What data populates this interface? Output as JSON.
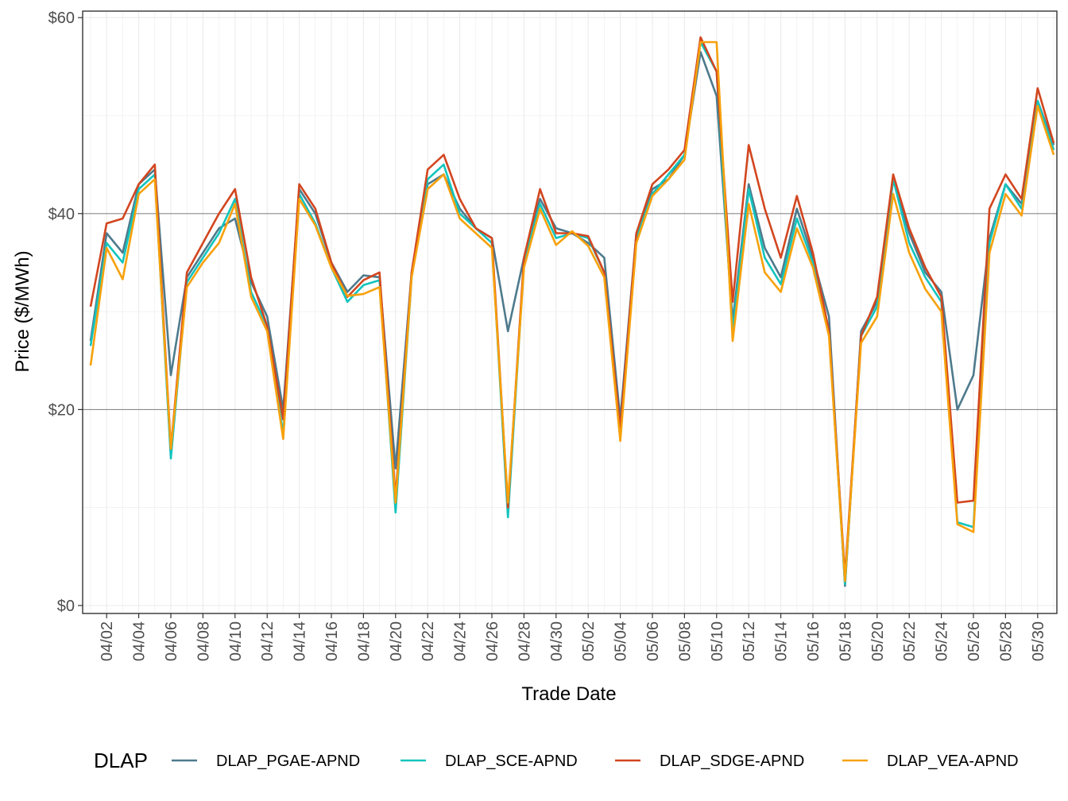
{
  "chart_data": {
    "type": "line",
    "xlabel": "Trade Date",
    "ylabel": "Price ($/MWh)",
    "ylim": [
      0,
      60
    ],
    "y_ticks": [
      "$0",
      "$20",
      "$40",
      "$60"
    ],
    "grid": true,
    "legend_position": "bottom",
    "legend_title": "DLAP",
    "x_tick_labels": [
      "04/02",
      "04/04",
      "04/06",
      "04/08",
      "04/10",
      "04/12",
      "04/14",
      "04/16",
      "04/18",
      "04/20",
      "04/22",
      "04/24",
      "04/26",
      "04/28",
      "04/30",
      "05/02",
      "05/04",
      "05/06",
      "05/08",
      "05/10",
      "05/12",
      "05/14",
      "05/16",
      "05/18",
      "05/20",
      "05/22",
      "05/24",
      "05/26",
      "05/28",
      "05/30"
    ],
    "x": [
      "04/01",
      "04/02",
      "04/03",
      "04/04",
      "04/05",
      "04/06",
      "04/07",
      "04/08",
      "04/09",
      "04/10",
      "04/11",
      "04/12",
      "04/13",
      "04/14",
      "04/15",
      "04/16",
      "04/17",
      "04/18",
      "04/19",
      "04/20",
      "04/21",
      "04/22",
      "04/23",
      "04/24",
      "04/25",
      "04/26",
      "04/27",
      "04/28",
      "04/29",
      "04/30",
      "05/01",
      "05/02",
      "05/03",
      "05/04",
      "05/05",
      "05/06",
      "05/07",
      "05/08",
      "05/09",
      "05/10",
      "05/11",
      "05/12",
      "05/13",
      "05/14",
      "05/15",
      "05/16",
      "05/17",
      "05/18",
      "05/19",
      "05/20",
      "05/21",
      "05/22",
      "05/23",
      "05/24",
      "05/25",
      "05/26",
      "05/27",
      "05/28",
      "05/29",
      "05/30",
      "05/31"
    ],
    "series": [
      {
        "name": "DLAP_PGAE-APND",
        "color": "#4e7a8c",
        "values": [
          27,
          38,
          36,
          43,
          44.5,
          23.5,
          33.5,
          36,
          38.5,
          39.5,
          33,
          29.5,
          20,
          42.5,
          40,
          35,
          32,
          33.7,
          33.5,
          14,
          34,
          43,
          44,
          40.5,
          38.5,
          37.5,
          28,
          35.5,
          41.5,
          38.5,
          38,
          37,
          35.5,
          19,
          38,
          42.5,
          43.5,
          46,
          56.5,
          52,
          29,
          43,
          36.5,
          33.5,
          40.5,
          35.5,
          29.5,
          2,
          28,
          31,
          43.5,
          38,
          34,
          32,
          20,
          23.5,
          37.5,
          43,
          41,
          51.5,
          47
        ]
      },
      {
        "name": "DLAP_SCE-APND",
        "color": "#12c4bd",
        "values": [
          26.5,
          37,
          35,
          42.5,
          44,
          15,
          33,
          35.5,
          38,
          41.5,
          32,
          28.5,
          17.5,
          42,
          39,
          34.5,
          31,
          32.7,
          33.2,
          9.5,
          33.5,
          43.5,
          45,
          40,
          38.5,
          37,
          9,
          35,
          41,
          37.5,
          38,
          37.5,
          34,
          17,
          37.5,
          42,
          44,
          46,
          57.5,
          54.5,
          28,
          42.5,
          35.5,
          32.8,
          39.5,
          35,
          28,
          2.2,
          27.5,
          30.5,
          43.5,
          37,
          33.5,
          31,
          8.5,
          8,
          37,
          43,
          40.5,
          51.5,
          46.5
        ]
      },
      {
        "name": "DLAP_SDGE-APND",
        "color": "#d2461f",
        "values": [
          30.5,
          39,
          39.5,
          43,
          45,
          16,
          34,
          37,
          40,
          42.5,
          33.5,
          28.5,
          19,
          43,
          40.5,
          35,
          31.5,
          33.2,
          34,
          11,
          34,
          44.5,
          46,
          41.5,
          38.5,
          37.5,
          10,
          35.5,
          42.5,
          38,
          38,
          37.7,
          34,
          18,
          38,
          43,
          44.5,
          46.5,
          58,
          54.5,
          31,
          47,
          40.5,
          35.5,
          41.8,
          36,
          28,
          3,
          27.5,
          31.5,
          44,
          38.5,
          34.5,
          31.5,
          10.5,
          10.7,
          40.5,
          44,
          41.5,
          52.8,
          47.2
        ]
      },
      {
        "name": "DLAP_VEA-APND",
        "color": "#f7a10c",
        "values": [
          24.5,
          36.5,
          33.3,
          42,
          43.5,
          16,
          32.5,
          35,
          37,
          41,
          31.5,
          28,
          17,
          41.5,
          38.8,
          34.5,
          31.6,
          31.8,
          32.5,
          10.5,
          33.5,
          42.5,
          44,
          39.5,
          38,
          36.5,
          10.5,
          34.5,
          40.5,
          36.8,
          38.2,
          36.7,
          33.5,
          16.8,
          37,
          41.8,
          43.5,
          45.5,
          57.5,
          57.5,
          27,
          41,
          34,
          32,
          38.5,
          34.5,
          27.5,
          2.5,
          26.8,
          29.5,
          42,
          36,
          32.3,
          30,
          8.3,
          7.5,
          36,
          42,
          39.8,
          51,
          46
        ]
      }
    ]
  }
}
